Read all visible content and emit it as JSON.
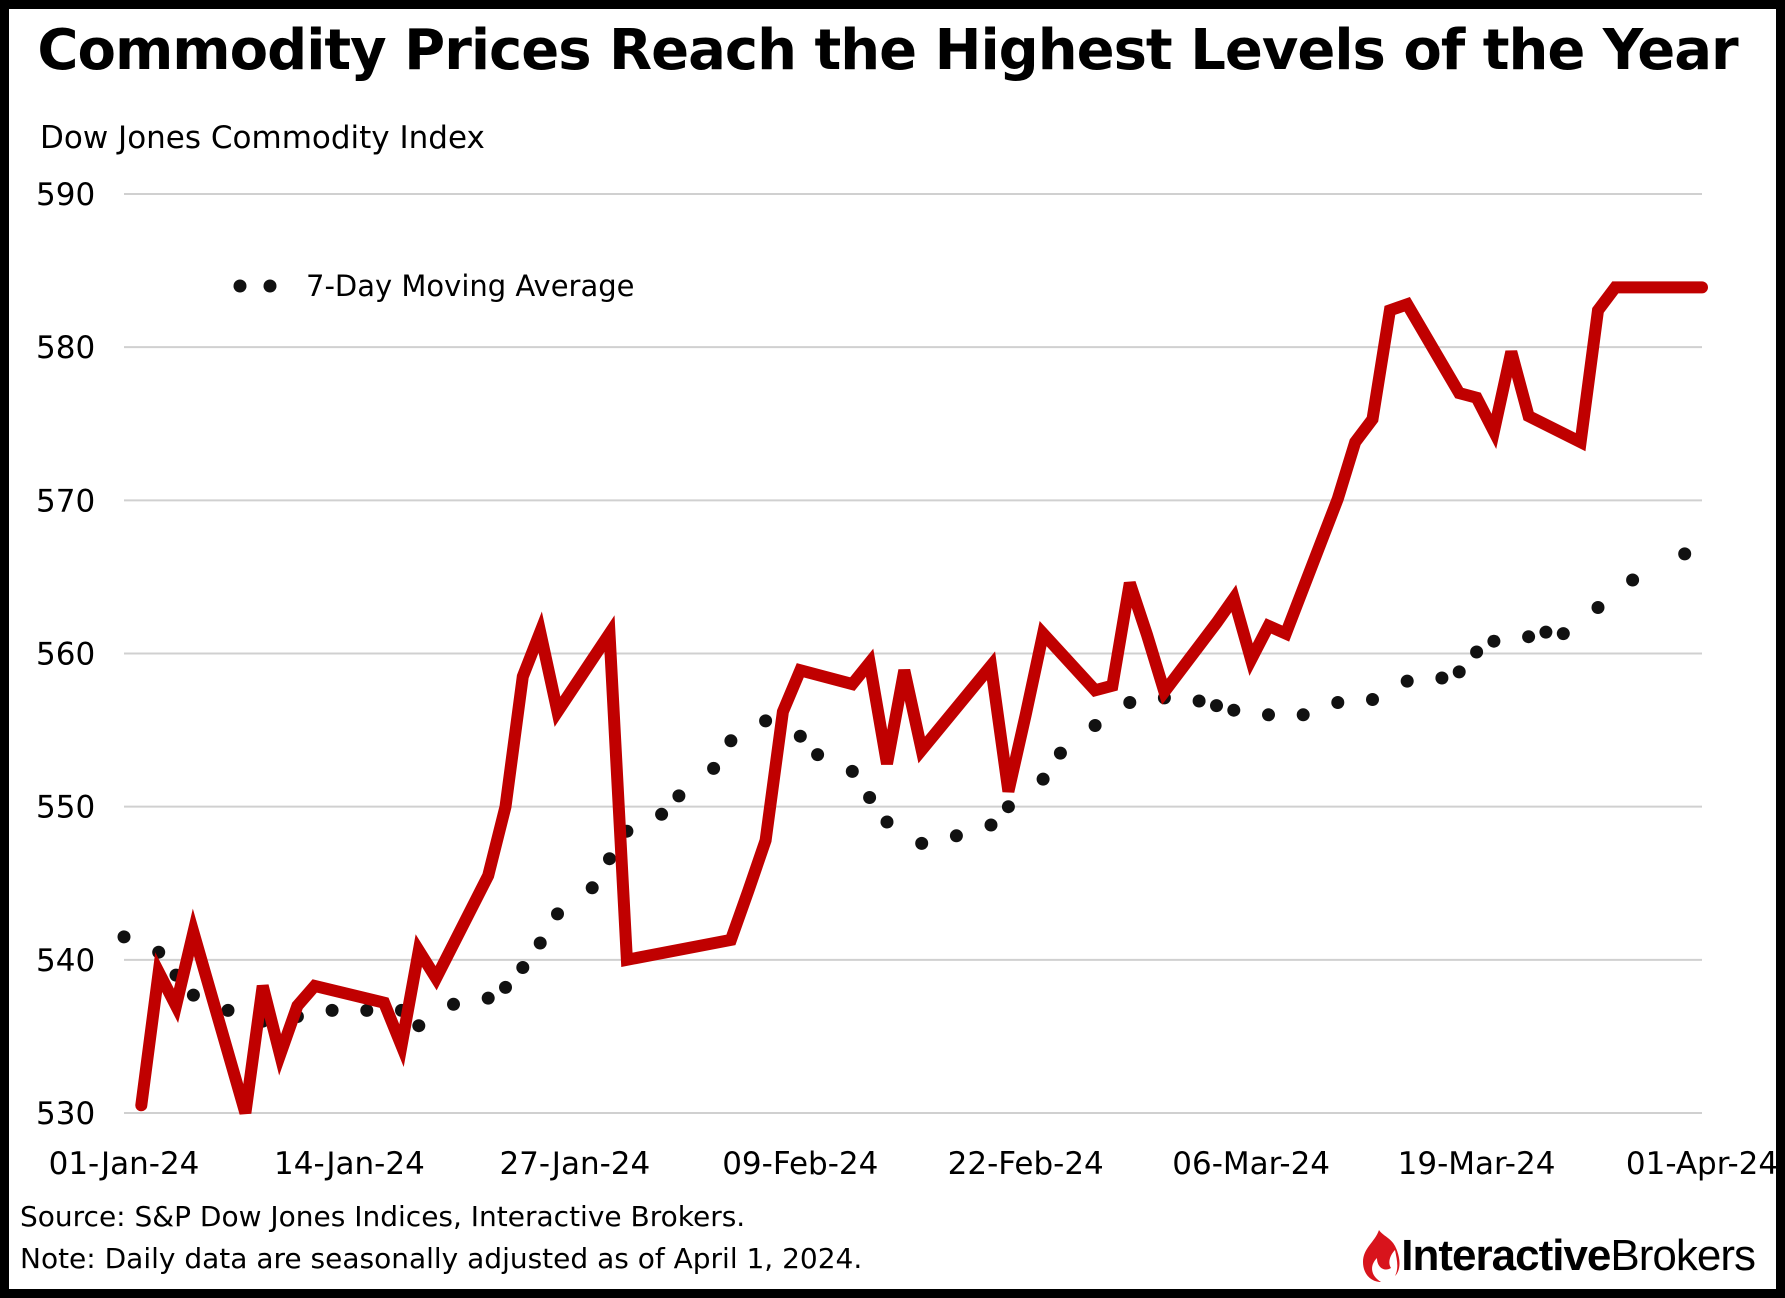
{
  "title": "Commodity Prices Reach the Highest Levels of the Year",
  "footer": {
    "source": "Source: S&P Dow Jones Indices, Interactive Brokers.",
    "note": "Note: Daily data are seasonally adjusted as of April 1, 2024."
  },
  "logo": {
    "part1": "Interactive",
    "part2": "Brokers",
    "icon": "ib-flame-icon",
    "color": "#d8141c"
  },
  "chart_data": {
    "type": "line",
    "ylabel": "Dow Jones Commodity Index",
    "xlabel": "",
    "ylim": [
      530,
      590
    ],
    "yticks": [
      530,
      540,
      550,
      560,
      570,
      580,
      590
    ],
    "xlim": [
      0,
      91
    ],
    "xtick_labels": [
      "01-Jan-24",
      "14-Jan-24",
      "27-Jan-24",
      "09-Feb-24",
      "22-Feb-24",
      "06-Mar-24",
      "19-Mar-24",
      "01-Apr-24"
    ],
    "grid": true,
    "legend": {
      "placement": "top-left"
    },
    "series": [
      {
        "style": "solid",
        "color": "#c00000",
        "x": [
          "2024-01-02",
          "2024-01-03",
          "2024-01-04",
          "2024-01-05",
          "2024-01-08",
          "2024-01-09",
          "2024-01-10",
          "2024-01-11",
          "2024-01-12",
          "2024-01-16",
          "2024-01-17",
          "2024-01-18",
          "2024-01-19",
          "2024-01-22",
          "2024-01-23",
          "2024-01-24",
          "2024-01-25",
          "2024-01-26",
          "2024-01-29",
          "2024-01-30",
          "2024-02-05",
          "2024-02-06",
          "2024-02-07",
          "2024-02-08",
          "2024-02-09",
          "2024-02-12",
          "2024-02-13",
          "2024-02-14",
          "2024-02-15",
          "2024-02-16",
          "2024-02-20",
          "2024-02-21",
          "2024-02-22",
          "2024-02-23",
          "2024-02-26",
          "2024-02-27",
          "2024-02-28",
          "2024-02-29",
          "2024-03-01",
          "2024-03-04",
          "2024-03-05",
          "2024-03-06",
          "2024-03-07",
          "2024-03-08",
          "2024-03-11",
          "2024-03-12",
          "2024-03-13",
          "2024-03-14",
          "2024-03-15",
          "2024-03-18",
          "2024-03-19",
          "2024-03-20",
          "2024-03-21",
          "2024-03-22",
          "2024-03-25",
          "2024-03-26",
          "2024-03-27",
          "2024-03-28",
          "2024-04-01"
        ],
        "values": [
          530.5,
          539.2,
          537.0,
          541.8,
          530.0,
          538.3,
          533.8,
          537.0,
          538.3,
          537.2,
          534.4,
          540.6,
          538.8,
          545.5,
          550.0,
          558.5,
          561.4,
          556.2,
          561.3,
          540.0,
          541.3,
          544.5,
          547.8,
          556.2,
          558.9,
          558.0,
          559.4,
          552.8,
          558.9,
          553.7,
          559.2,
          551.0,
          556.0,
          561.3,
          557.6,
          557.9,
          564.6,
          561.2,
          557.5,
          562.0,
          563.6,
          559.6,
          561.8,
          561.3,
          570.1,
          573.8,
          575.3,
          582.4,
          582.8,
          577.0,
          576.7,
          574.5,
          579.7,
          575.5,
          573.8,
          582.4,
          583.9,
          583.9,
          583.9
        ]
      },
      {
        "name": "7-Day Moving Average",
        "style": "dotted",
        "color": "#111111",
        "x": [
          "2024-01-01",
          "2024-01-03",
          "2024-01-04",
          "2024-01-05",
          "2024-01-07",
          "2024-01-09",
          "2024-01-11",
          "2024-01-13",
          "2024-01-15",
          "2024-01-17",
          "2024-01-18",
          "2024-01-20",
          "2024-01-22",
          "2024-01-23",
          "2024-01-24",
          "2024-01-25",
          "2024-01-26",
          "2024-01-28",
          "2024-01-29",
          "2024-01-30",
          "2024-02-01",
          "2024-02-02",
          "2024-02-04",
          "2024-02-05",
          "2024-02-07",
          "2024-02-09",
          "2024-02-10",
          "2024-02-12",
          "2024-02-13",
          "2024-02-14",
          "2024-02-16",
          "2024-02-18",
          "2024-02-20",
          "2024-02-21",
          "2024-02-23",
          "2024-02-24",
          "2024-02-26",
          "2024-02-28",
          "2024-03-01",
          "2024-03-03",
          "2024-03-04",
          "2024-03-05",
          "2024-03-07",
          "2024-03-09",
          "2024-03-11",
          "2024-03-13",
          "2024-03-15",
          "2024-03-17",
          "2024-03-18",
          "2024-03-19",
          "2024-03-20",
          "2024-03-22",
          "2024-03-23",
          "2024-03-24",
          "2024-03-26",
          "2024-03-28",
          "2024-03-31"
        ],
        "values": [
          541.5,
          540.5,
          539.0,
          537.7,
          536.7,
          536.0,
          536.3,
          536.7,
          536.7,
          536.7,
          535.7,
          537.1,
          537.5,
          538.2,
          539.5,
          541.1,
          543.0,
          544.7,
          546.6,
          548.4,
          549.5,
          550.7,
          552.5,
          554.3,
          555.6,
          554.6,
          553.4,
          552.3,
          550.6,
          549.0,
          547.6,
          548.1,
          548.8,
          550.0,
          551.8,
          553.5,
          555.3,
          556.8,
          557.1,
          556.9,
          556.6,
          556.3,
          556.0,
          556.0,
          556.8,
          557.0,
          558.2,
          558.4,
          558.8,
          560.1,
          560.8,
          561.1,
          561.4,
          561.3,
          563.0,
          564.8,
          566.5
        ]
      }
    ]
  }
}
